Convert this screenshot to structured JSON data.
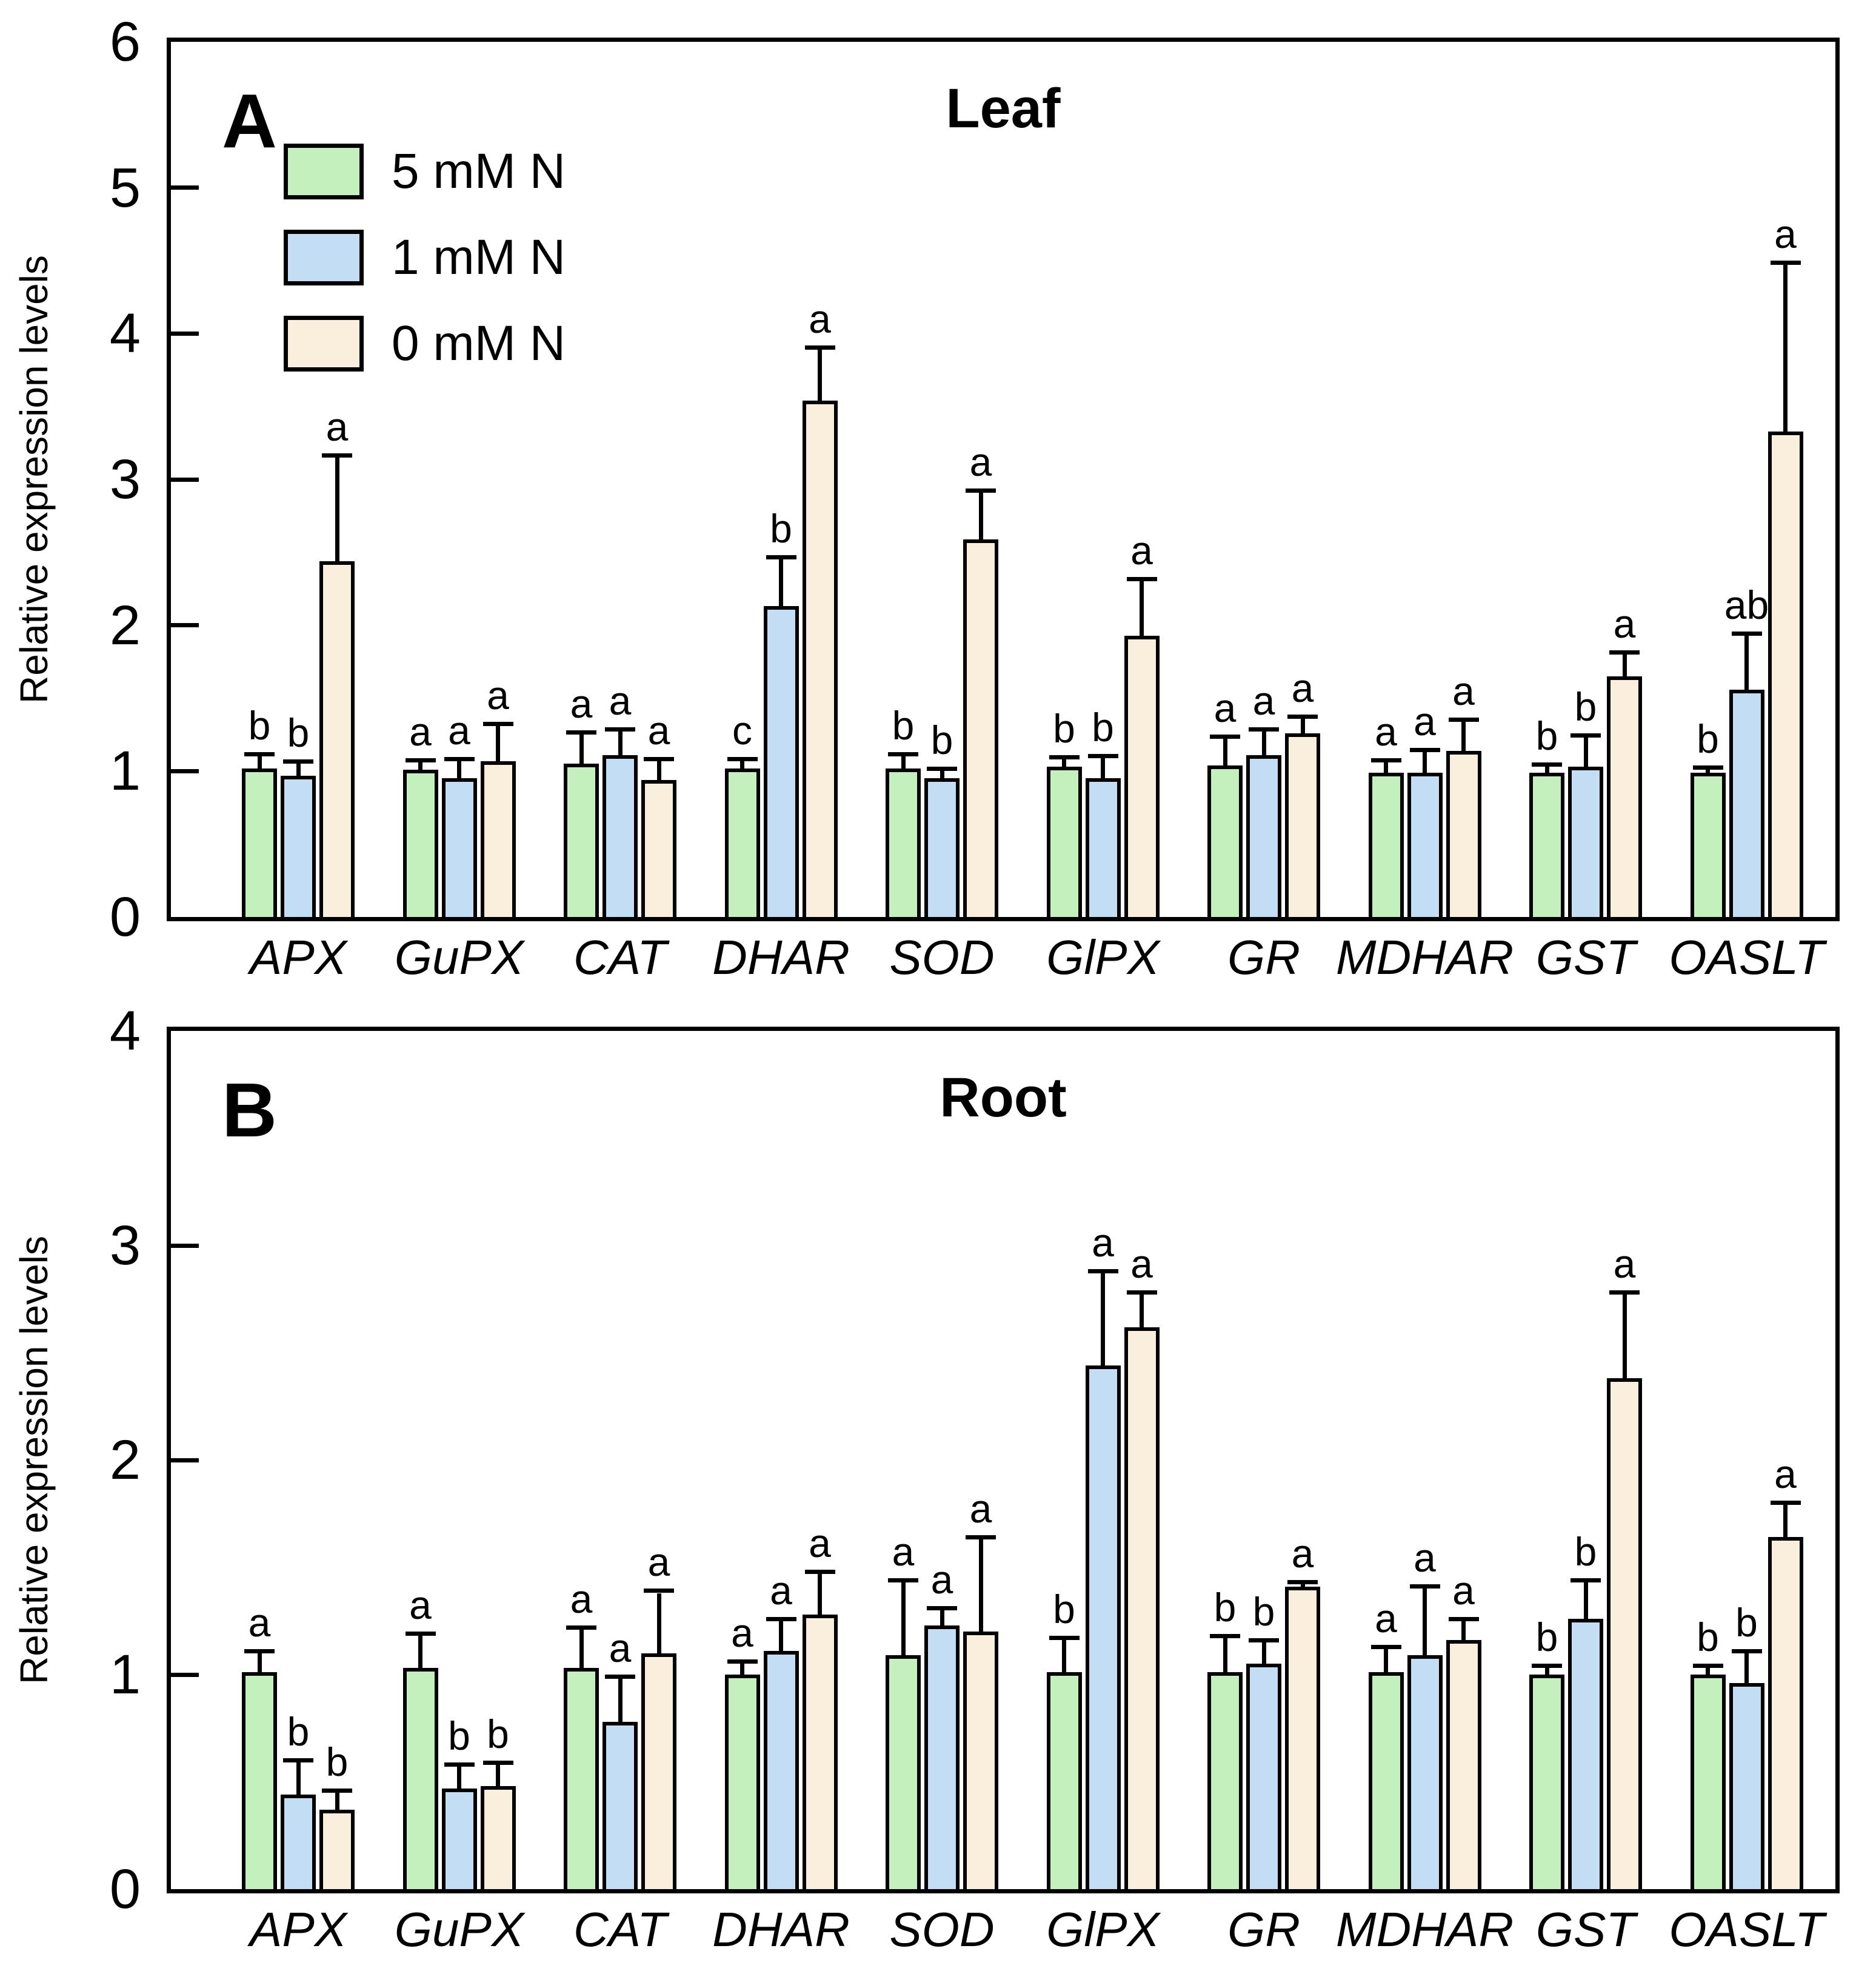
{
  "chart_data": [
    {
      "type": "bar",
      "panel_label": "A",
      "title": "Leaf",
      "ylabel": "Relative expression levels",
      "ylim": [
        0,
        6
      ],
      "yticks": [
        0,
        1,
        2,
        3,
        4,
        5,
        6
      ],
      "grid": false,
      "legend_visible": true,
      "legend_position": "top-left",
      "categories": [
        "APX",
        "GuPX",
        "CAT",
        "DHAR",
        "SOD",
        "GlPX",
        "GR",
        "MDHAR",
        "GST",
        "OASLT"
      ],
      "series": [
        {
          "name": "5 mM N",
          "color": "#c3f0bd",
          "values": [
            1.02,
            1.01,
            1.05,
            1.02,
            1.02,
            1.03,
            1.04,
            0.99,
            0.99,
            0.99
          ],
          "errors": [
            0.08,
            0.05,
            0.2,
            0.05,
            0.08,
            0.05,
            0.18,
            0.07,
            0.04,
            0.02
          ],
          "letters": [
            "b",
            "a",
            "a",
            "c",
            "b",
            "b",
            "a",
            "a",
            "b",
            "b"
          ]
        },
        {
          "name": "1 mM N",
          "color": "#c3ddf4",
          "values": [
            0.97,
            0.95,
            1.11,
            2.13,
            0.95,
            0.95,
            1.11,
            0.99,
            1.03,
            1.56
          ],
          "errors": [
            0.08,
            0.12,
            0.16,
            0.32,
            0.05,
            0.14,
            0.16,
            0.14,
            0.2,
            0.37
          ],
          "letters": [
            "b",
            "a",
            "a",
            "b",
            "b",
            "b",
            "a",
            "a",
            "b",
            "ab"
          ]
        },
        {
          "name": "0 mM N",
          "color": "#faeedc",
          "values": [
            2.44,
            1.07,
            0.94,
            3.54,
            2.59,
            1.93,
            1.26,
            1.14,
            1.65,
            3.33
          ],
          "errors": [
            0.71,
            0.24,
            0.13,
            0.35,
            0.32,
            0.37,
            0.1,
            0.2,
            0.15,
            1.14
          ],
          "letters": [
            "a",
            "a",
            "a",
            "a",
            "a",
            "a",
            "a",
            "a",
            "a",
            "a"
          ]
        }
      ]
    },
    {
      "type": "bar",
      "panel_label": "B",
      "title": "Root",
      "ylabel": "Relative expression levels",
      "ylim": [
        0,
        4
      ],
      "yticks": [
        0,
        1,
        2,
        3,
        4
      ],
      "grid": false,
      "legend_visible": false,
      "categories": [
        "APX",
        "GuPX",
        "CAT",
        "DHAR",
        "SOD",
        "GlPX",
        "GR",
        "MDHAR",
        "GST",
        "OASLT"
      ],
      "series": [
        {
          "name": "5 mM N",
          "color": "#c3f0bd",
          "values": [
            1.01,
            1.03,
            1.03,
            1.0,
            1.09,
            1.01,
            1.01,
            1.01,
            1.0,
            1.0
          ],
          "errors": [
            0.09,
            0.15,
            0.18,
            0.05,
            0.34,
            0.15,
            0.16,
            0.11,
            0.03,
            0.03
          ],
          "letters": [
            "a",
            "a",
            "a",
            "a",
            "a",
            "b",
            "b",
            "a",
            "b",
            "b"
          ]
        },
        {
          "name": "1 mM N",
          "color": "#c3ddf4",
          "values": [
            0.44,
            0.47,
            0.78,
            1.11,
            1.23,
            2.44,
            1.05,
            1.09,
            1.26,
            0.96
          ],
          "errors": [
            0.15,
            0.1,
            0.2,
            0.14,
            0.07,
            0.43,
            0.1,
            0.31,
            0.17,
            0.14
          ],
          "letters": [
            "b",
            "b",
            "a",
            "a",
            "a",
            "a",
            "b",
            "a",
            "b",
            "b"
          ]
        },
        {
          "name": "0 mM N",
          "color": "#faeedc",
          "values": [
            0.37,
            0.48,
            1.1,
            1.28,
            1.2,
            2.62,
            1.41,
            1.16,
            2.38,
            1.64
          ],
          "errors": [
            0.08,
            0.1,
            0.28,
            0.19,
            0.43,
            0.15,
            0.01,
            0.09,
            0.39,
            0.15
          ],
          "letters": [
            "b",
            "b",
            "a",
            "a",
            "a",
            "a",
            "a",
            "a",
            "a",
            "a"
          ]
        }
      ]
    }
  ],
  "colors": {
    "bar_border": "#000000",
    "background": "#ffffff"
  }
}
